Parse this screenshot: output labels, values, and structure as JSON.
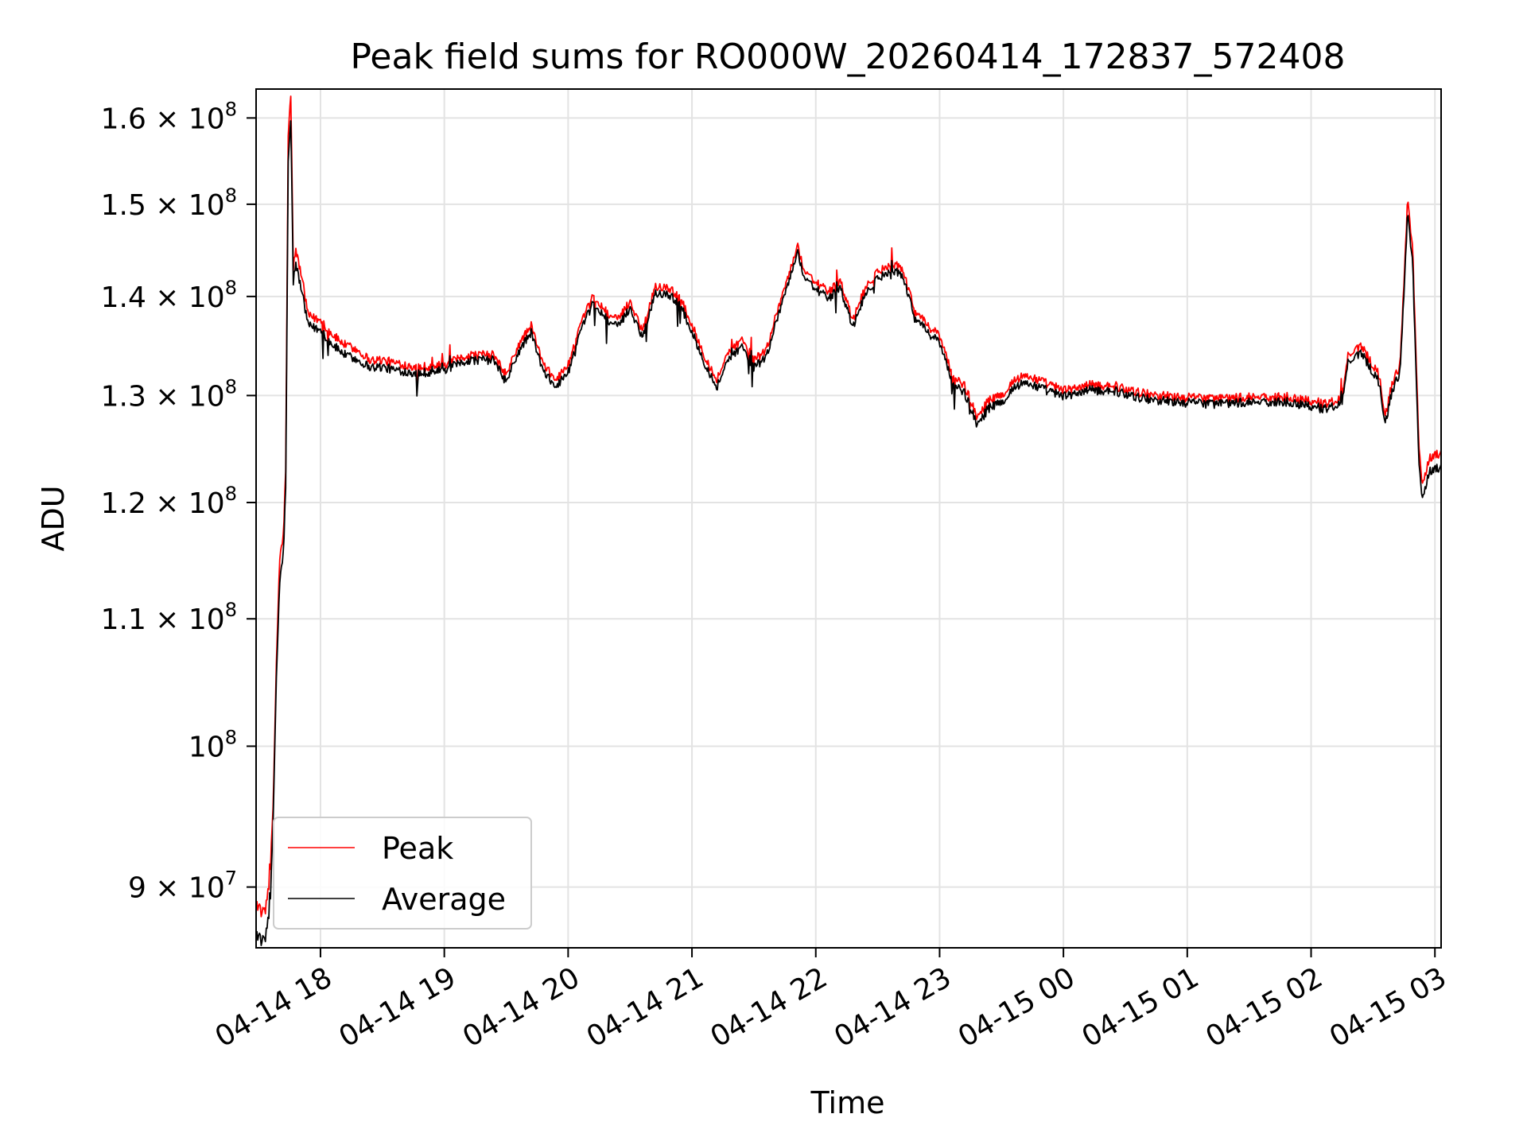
{
  "chart_data": {
    "type": "line",
    "title": "Peak field sums for RO000W_20260414_172837_572408",
    "xlabel": "Time",
    "ylabel": "ADU",
    "xscale": "time",
    "yscale": "log",
    "xlim_hours": [
      17.48,
      27.05
    ],
    "ylim": [
      86000000,
      163500000
    ],
    "grid": true,
    "legend_loc": "lower left",
    "x_ticks": [
      {
        "hour": 18,
        "label": "04-14 18"
      },
      {
        "hour": 19,
        "label": "04-14 19"
      },
      {
        "hour": 20,
        "label": "04-14 20"
      },
      {
        "hour": 21,
        "label": "04-14 21"
      },
      {
        "hour": 22,
        "label": "04-14 22"
      },
      {
        "hour": 23,
        "label": "04-14 23"
      },
      {
        "hour": 24,
        "label": "04-15 00"
      },
      {
        "hour": 25,
        "label": "04-15 01"
      },
      {
        "hour": 26,
        "label": "04-15 02"
      },
      {
        "hour": 27,
        "label": "04-15 03"
      }
    ],
    "y_ticks": [
      {
        "value": 90000000,
        "mantissa": "9",
        "times": "×",
        "base": "10",
        "exp": "7"
      },
      {
        "value": 100000000,
        "mantissa": "",
        "times": "",
        "base": "10",
        "exp": "8"
      },
      {
        "value": 110000000,
        "mantissa": "1.1",
        "times": "×",
        "base": "10",
        "exp": "8"
      },
      {
        "value": 120000000,
        "mantissa": "1.2",
        "times": "×",
        "base": "10",
        "exp": "8"
      },
      {
        "value": 130000000,
        "mantissa": "1.3",
        "times": "×",
        "base": "10",
        "exp": "8"
      },
      {
        "value": 140000000,
        "mantissa": "1.4",
        "times": "×",
        "base": "10",
        "exp": "8"
      },
      {
        "value": 150000000,
        "mantissa": "1.5",
        "times": "×",
        "base": "10",
        "exp": "8"
      },
      {
        "value": 160000000,
        "mantissa": "1.6",
        "times": "×",
        "base": "10",
        "exp": "8"
      }
    ],
    "series": [
      {
        "name": "Peak",
        "color": "#ff0000",
        "anchors": [
          [
            17.48,
            89.0
          ],
          [
            17.55,
            88.0
          ],
          [
            17.6,
            92.0
          ],
          [
            17.62,
            96.0
          ],
          [
            17.64,
            105.0
          ],
          [
            17.67,
            115.0
          ],
          [
            17.7,
            117.0
          ],
          [
            17.72,
            123.0
          ],
          [
            17.74,
            158.0
          ],
          [
            17.76,
            163.0
          ],
          [
            17.78,
            143.0
          ],
          [
            17.8,
            145.0
          ],
          [
            17.85,
            142.0
          ],
          [
            17.9,
            138.0
          ],
          [
            18.0,
            137.5
          ],
          [
            18.1,
            136.0
          ],
          [
            18.2,
            135.0
          ],
          [
            18.3,
            134.5
          ],
          [
            18.4,
            133.5
          ],
          [
            18.5,
            133.5
          ],
          [
            18.6,
            133.2
          ],
          [
            18.8,
            132.8
          ],
          [
            19.0,
            133.0
          ],
          [
            19.2,
            134.0
          ],
          [
            19.4,
            134.0
          ],
          [
            19.5,
            132.0
          ],
          [
            19.6,
            135.0
          ],
          [
            19.7,
            137.0
          ],
          [
            19.8,
            133.0
          ],
          [
            19.9,
            131.5
          ],
          [
            20.0,
            133.0
          ],
          [
            20.1,
            137.0
          ],
          [
            20.2,
            140.0
          ],
          [
            20.3,
            138.5
          ],
          [
            20.4,
            137.5
          ],
          [
            20.5,
            139.5
          ],
          [
            20.6,
            136.5
          ],
          [
            20.7,
            141.0
          ],
          [
            20.8,
            141.0
          ],
          [
            20.9,
            140.0
          ],
          [
            21.0,
            137.0
          ],
          [
            21.1,
            134.0
          ],
          [
            21.2,
            131.5
          ],
          [
            21.3,
            134.5
          ],
          [
            21.4,
            135.5
          ],
          [
            21.5,
            133.5
          ],
          [
            21.6,
            134.5
          ],
          [
            21.7,
            139.0
          ],
          [
            21.8,
            143.0
          ],
          [
            21.85,
            145.5
          ],
          [
            21.9,
            143.0
          ],
          [
            22.0,
            141.5
          ],
          [
            22.1,
            140.5
          ],
          [
            22.2,
            141.5
          ],
          [
            22.3,
            137.5
          ],
          [
            22.4,
            141.0
          ],
          [
            22.5,
            142.5
          ],
          [
            22.6,
            143.5
          ],
          [
            22.7,
            143.0
          ],
          [
            22.8,
            138.5
          ],
          [
            22.9,
            137.0
          ],
          [
            23.0,
            136.0
          ],
          [
            23.1,
            132.0
          ],
          [
            23.2,
            131.0
          ],
          [
            23.3,
            128.0
          ],
          [
            23.4,
            129.5
          ],
          [
            23.5,
            130.0
          ],
          [
            23.6,
            131.5
          ],
          [
            23.7,
            132.0
          ],
          [
            23.8,
            131.5
          ],
          [
            24.0,
            130.5
          ],
          [
            24.2,
            131.0
          ],
          [
            24.4,
            131.0
          ],
          [
            24.6,
            130.3
          ],
          [
            24.8,
            130.0
          ],
          [
            25.0,
            129.8
          ],
          [
            25.2,
            129.7
          ],
          [
            25.4,
            129.8
          ],
          [
            25.6,
            129.8
          ],
          [
            25.8,
            129.9
          ],
          [
            26.0,
            129.5
          ],
          [
            26.1,
            129.2
          ],
          [
            26.2,
            129.5
          ],
          [
            26.25,
            130.0
          ],
          [
            26.3,
            134.0
          ],
          [
            26.4,
            135.0
          ],
          [
            26.5,
            133.0
          ],
          [
            26.55,
            132.0
          ],
          [
            26.6,
            128.0
          ],
          [
            26.65,
            131.0
          ],
          [
            26.72,
            133.0
          ],
          [
            26.78,
            150.5
          ],
          [
            26.82,
            145.0
          ],
          [
            26.87,
            125.0
          ],
          [
            26.9,
            121.5
          ],
          [
            26.95,
            124.0
          ],
          [
            27.0,
            124.5
          ],
          [
            27.05,
            124.5
          ]
        ]
      },
      {
        "name": "Average",
        "color": "#000000",
        "anchors": [
          [
            17.48,
            87.0
          ],
          [
            17.55,
            86.2
          ],
          [
            17.6,
            90.0
          ],
          [
            17.62,
            95.0
          ],
          [
            17.64,
            104.0
          ],
          [
            17.67,
            113.0
          ],
          [
            17.7,
            115.5
          ],
          [
            17.72,
            121.5
          ],
          [
            17.74,
            155.0
          ],
          [
            17.76,
            160.0
          ],
          [
            17.78,
            141.5
          ],
          [
            17.8,
            143.5
          ],
          [
            17.85,
            140.5
          ],
          [
            17.9,
            137.0
          ],
          [
            18.0,
            136.5
          ],
          [
            18.1,
            135.0
          ],
          [
            18.2,
            134.0
          ],
          [
            18.3,
            133.5
          ],
          [
            18.4,
            132.8
          ],
          [
            18.5,
            132.8
          ],
          [
            18.6,
            132.5
          ],
          [
            18.8,
            132.2
          ],
          [
            19.0,
            132.5
          ],
          [
            19.2,
            133.5
          ],
          [
            19.4,
            133.5
          ],
          [
            19.5,
            131.3
          ],
          [
            19.6,
            134.3
          ],
          [
            19.7,
            136.3
          ],
          [
            19.8,
            132.3
          ],
          [
            19.9,
            130.8
          ],
          [
            20.0,
            132.3
          ],
          [
            20.1,
            136.3
          ],
          [
            20.2,
            139.3
          ],
          [
            20.3,
            137.8
          ],
          [
            20.4,
            136.8
          ],
          [
            20.5,
            138.8
          ],
          [
            20.6,
            135.8
          ],
          [
            20.7,
            140.3
          ],
          [
            20.8,
            140.3
          ],
          [
            20.9,
            139.3
          ],
          [
            21.0,
            136.3
          ],
          [
            21.1,
            133.3
          ],
          [
            21.2,
            130.8
          ],
          [
            21.3,
            133.8
          ],
          [
            21.4,
            134.8
          ],
          [
            21.5,
            132.8
          ],
          [
            21.6,
            133.8
          ],
          [
            21.7,
            138.3
          ],
          [
            21.8,
            142.3
          ],
          [
            21.85,
            144.8
          ],
          [
            21.9,
            142.3
          ],
          [
            22.0,
            140.8
          ],
          [
            22.1,
            139.8
          ],
          [
            22.2,
            140.8
          ],
          [
            22.3,
            136.8
          ],
          [
            22.4,
            140.3
          ],
          [
            22.5,
            141.8
          ],
          [
            22.6,
            142.8
          ],
          [
            22.7,
            142.3
          ],
          [
            22.8,
            137.8
          ],
          [
            22.9,
            136.3
          ],
          [
            23.0,
            135.3
          ],
          [
            23.1,
            131.3
          ],
          [
            23.2,
            130.3
          ],
          [
            23.3,
            127.3
          ],
          [
            23.4,
            128.8
          ],
          [
            23.5,
            129.3
          ],
          [
            23.6,
            130.8
          ],
          [
            23.7,
            131.3
          ],
          [
            23.8,
            130.8
          ],
          [
            24.0,
            129.9
          ],
          [
            24.2,
            130.5
          ],
          [
            24.4,
            130.5
          ],
          [
            24.6,
            129.8
          ],
          [
            24.8,
            129.5
          ],
          [
            25.0,
            129.3
          ],
          [
            25.2,
            129.2
          ],
          [
            25.4,
            129.3
          ],
          [
            25.6,
            129.3
          ],
          [
            25.8,
            129.4
          ],
          [
            26.0,
            129.0
          ],
          [
            26.1,
            128.7
          ],
          [
            26.2,
            129.0
          ],
          [
            26.25,
            129.5
          ],
          [
            26.3,
            133.3
          ],
          [
            26.4,
            134.3
          ],
          [
            26.5,
            132.3
          ],
          [
            26.55,
            131.3
          ],
          [
            26.6,
            127.3
          ],
          [
            26.65,
            130.3
          ],
          [
            26.72,
            132.3
          ],
          [
            26.78,
            149.0
          ],
          [
            26.82,
            143.5
          ],
          [
            26.87,
            123.5
          ],
          [
            26.9,
            120.2
          ],
          [
            26.95,
            122.8
          ],
          [
            27.0,
            123.2
          ],
          [
            27.05,
            123.2
          ]
        ]
      }
    ],
    "anchor_units": "x in hours since 04-14 00:00, y in millions of ADU"
  }
}
